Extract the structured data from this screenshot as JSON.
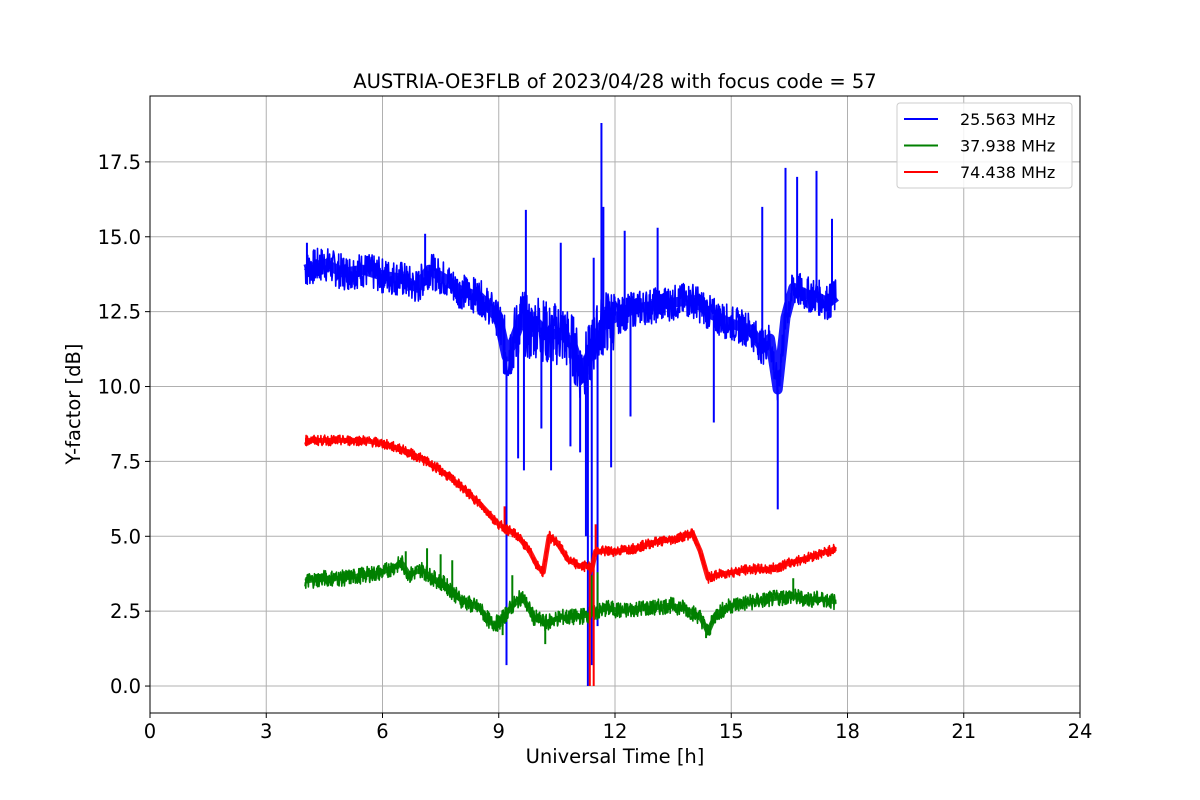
{
  "chart_data": {
    "type": "line",
    "title": "AUSTRIA-OE3FLB of 2023/04/28 with focus code = 57",
    "xlabel": "Universal Time [h]",
    "ylabel": "Y-factor [dB]",
    "xlim": [
      0,
      24
    ],
    "ylim": [
      -0.9,
      19.7
    ],
    "xticks": [
      0,
      3,
      6,
      9,
      12,
      15,
      18,
      21,
      24
    ],
    "yticks": [
      0.0,
      2.5,
      5.0,
      7.5,
      10.0,
      12.5,
      15.0,
      17.5
    ],
    "xtick_labels": [
      "0",
      "3",
      "6",
      "9",
      "12",
      "15",
      "18",
      "21",
      "24"
    ],
    "ytick_labels": [
      "0.0",
      "2.5",
      "5.0",
      "7.5",
      "10.0",
      "12.5",
      "15.0",
      "17.5"
    ],
    "grid": true,
    "legend_position": "top-right",
    "series": [
      {
        "name": "25.563 MHz",
        "color": "#0000ff",
        "x": [
          4.0,
          4.5,
          5.0,
          5.5,
          6.0,
          6.5,
          6.9,
          7.2,
          7.6,
          8.0,
          8.5,
          8.8,
          9.0,
          9.2,
          9.4,
          9.6,
          9.8,
          10.0,
          10.3,
          10.6,
          10.9,
          11.1,
          11.3,
          11.5,
          11.7,
          12.0,
          12.5,
          13.0,
          13.5,
          14.0,
          14.5,
          15.0,
          15.5,
          15.8,
          16.0,
          16.2,
          16.4,
          16.6,
          16.9,
          17.2,
          17.5,
          17.7
        ],
        "y": [
          13.9,
          14.1,
          13.8,
          13.9,
          13.7,
          13.6,
          13.3,
          13.9,
          13.6,
          13.2,
          13.0,
          12.6,
          12.2,
          11.0,
          11.6,
          12.3,
          11.8,
          12.1,
          11.7,
          11.8,
          11.4,
          10.6,
          10.9,
          11.6,
          12.1,
          12.3,
          12.6,
          12.7,
          12.8,
          12.9,
          12.4,
          12.1,
          11.9,
          11.3,
          11.6,
          9.9,
          12.3,
          13.3,
          13.1,
          13.0,
          12.8,
          13.0
        ],
        "spikes": [
          {
            "x": 4.05,
            "y": 14.8
          },
          {
            "x": 7.1,
            "y": 15.1
          },
          {
            "x": 9.2,
            "y": 0.7
          },
          {
            "x": 9.2,
            "y": 6.0
          },
          {
            "x": 9.5,
            "y": 7.6
          },
          {
            "x": 9.65,
            "y": 7.2
          },
          {
            "x": 9.7,
            "y": 15.9
          },
          {
            "x": 10.35,
            "y": 7.2
          },
          {
            "x": 10.1,
            "y": 8.6
          },
          {
            "x": 10.6,
            "y": 14.8
          },
          {
            "x": 10.85,
            "y": 8.0
          },
          {
            "x": 11.1,
            "y": 7.8
          },
          {
            "x": 11.25,
            "y": 5.0
          },
          {
            "x": 11.3,
            "y": 0.0
          },
          {
            "x": 11.4,
            "y": 0.7
          },
          {
            "x": 11.45,
            "y": 14.3
          },
          {
            "x": 11.55,
            "y": 2.0
          },
          {
            "x": 11.65,
            "y": 18.8
          },
          {
            "x": 11.7,
            "y": 16.0
          },
          {
            "x": 11.9,
            "y": 7.3
          },
          {
            "x": 12.25,
            "y": 15.2
          },
          {
            "x": 12.4,
            "y": 9.0
          },
          {
            "x": 13.1,
            "y": 15.3
          },
          {
            "x": 14.55,
            "y": 8.8
          },
          {
            "x": 15.8,
            "y": 16.0
          },
          {
            "x": 16.2,
            "y": 5.9
          },
          {
            "x": 16.4,
            "y": 17.3
          },
          {
            "x": 16.7,
            "y": 17.0
          },
          {
            "x": 17.2,
            "y": 17.2
          },
          {
            "x": 17.6,
            "y": 15.6
          }
        ]
      },
      {
        "name": "37.938 MHz",
        "color": "#008000",
        "x": [
          4.0,
          4.5,
          5.0,
          5.5,
          6.0,
          6.5,
          6.7,
          7.0,
          7.3,
          7.6,
          8.0,
          8.3,
          8.5,
          8.8,
          9.0,
          9.3,
          9.6,
          9.9,
          10.2,
          10.6,
          11.0,
          11.4,
          11.8,
          12.2,
          12.6,
          13.0,
          13.4,
          13.8,
          14.2,
          14.4,
          14.6,
          15.0,
          15.5,
          16.0,
          16.5,
          17.0,
          17.4,
          17.7
        ],
        "y": [
          3.5,
          3.6,
          3.6,
          3.7,
          3.8,
          4.1,
          3.7,
          3.9,
          3.6,
          3.4,
          2.9,
          2.7,
          2.6,
          2.1,
          2.1,
          2.6,
          3.0,
          2.3,
          2.1,
          2.3,
          2.3,
          2.4,
          2.6,
          2.5,
          2.6,
          2.6,
          2.7,
          2.6,
          2.3,
          1.8,
          2.4,
          2.7,
          2.8,
          2.9,
          3.0,
          2.9,
          2.9,
          2.8
        ],
        "spikes": [
          {
            "x": 6.6,
            "y": 4.5
          },
          {
            "x": 7.15,
            "y": 4.6
          },
          {
            "x": 7.5,
            "y": 4.4
          },
          {
            "x": 7.8,
            "y": 4.2
          },
          {
            "x": 9.1,
            "y": 1.7
          },
          {
            "x": 9.35,
            "y": 3.7
          },
          {
            "x": 11.4,
            "y": 3.7
          },
          {
            "x": 11.55,
            "y": 3.8
          },
          {
            "x": 10.2,
            "y": 1.4
          },
          {
            "x": 14.35,
            "y": 1.6
          },
          {
            "x": 16.6,
            "y": 3.6
          }
        ]
      },
      {
        "name": "74.438 MHz",
        "color": "#ff0000",
        "x": [
          4.0,
          4.5,
          5.0,
          5.5,
          6.0,
          6.5,
          7.0,
          7.5,
          8.0,
          8.5,
          9.0,
          9.5,
          9.8,
          10.0,
          10.15,
          10.3,
          10.5,
          10.8,
          11.1,
          11.3,
          11.4,
          11.5,
          12.0,
          12.5,
          13.0,
          13.5,
          14.0,
          14.2,
          14.4,
          14.6,
          15.0,
          15.5,
          16.0,
          16.5,
          17.0,
          17.5,
          17.7
        ],
        "y": [
          8.2,
          8.2,
          8.2,
          8.2,
          8.1,
          7.9,
          7.6,
          7.2,
          6.7,
          6.1,
          5.4,
          5.0,
          4.5,
          4.0,
          3.8,
          5.0,
          4.8,
          4.2,
          4.0,
          4.0,
          3.9,
          4.5,
          4.5,
          4.6,
          4.8,
          4.9,
          5.1,
          4.5,
          3.6,
          3.7,
          3.8,
          3.9,
          3.9,
          4.1,
          4.3,
          4.5,
          4.6
        ],
        "spikes": [
          {
            "x": 9.15,
            "y": 6.0
          },
          {
            "x": 11.35,
            "y": 0.0
          },
          {
            "x": 11.45,
            "y": 0.0
          },
          {
            "x": 11.5,
            "y": 5.4
          }
        ]
      }
    ]
  }
}
